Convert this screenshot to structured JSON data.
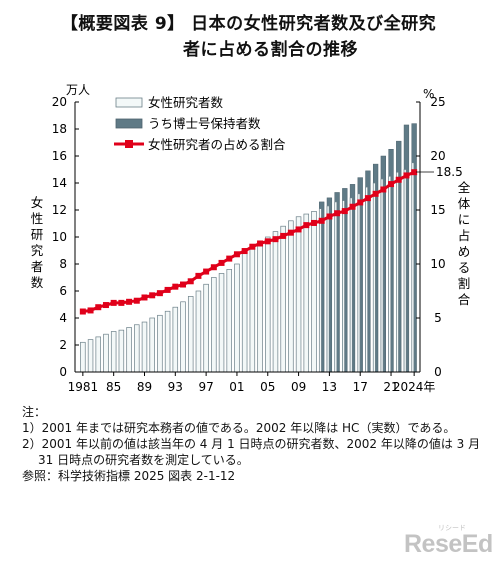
{
  "header": {
    "title_line1": "【概要図表 9】 日本の女性研究者数及び全研究",
    "title_line2": "者に占める割合の推移"
  },
  "chart_data": {
    "type": "bar",
    "x_start_year": 1981,
    "x_tick_labels": [
      "1981",
      "85",
      "89",
      "93",
      "97",
      "01",
      "05",
      "09",
      "13",
      "17",
      "21",
      "2024年"
    ],
    "left_axis": {
      "unit": "万人",
      "label": "女性研究者数",
      "ylim": [
        0,
        20
      ],
      "ticks": [
        "0",
        "2",
        "4",
        "6",
        "8",
        "10",
        "12",
        "14",
        "16",
        "18",
        "20"
      ]
    },
    "right_axis": {
      "unit": "%",
      "label": "全体に占める割合",
      "ylim": [
        0,
        25
      ],
      "ticks": [
        "0",
        "5",
        "10",
        "15",
        "20",
        "25"
      ]
    },
    "legend": [
      "女性研究者数",
      "うち博士号保持者数",
      "女性研究者の占める割合"
    ],
    "legend_placement": "top-left",
    "annotation": "18.5",
    "series": [
      {
        "name": "女性研究者数",
        "type": "bar",
        "values": [
          2.2,
          2.4,
          2.6,
          2.8,
          3.0,
          3.1,
          3.3,
          3.5,
          3.7,
          4.0,
          4.2,
          4.5,
          4.8,
          5.2,
          5.6,
          6.0,
          6.5,
          7.0,
          7.3,
          7.6,
          8.0,
          8.8,
          9.2,
          9.6,
          10.0,
          10.4,
          10.8,
          11.2,
          11.5,
          11.7,
          11.9,
          12.1,
          12.3,
          12.6,
          12.7,
          12.9,
          13.2,
          13.7,
          14.0,
          14.3,
          14.5,
          14.8,
          15.0,
          15.5
        ]
      },
      {
        "name": "うち博士号保持者数",
        "type": "bar",
        "values": [
          null,
          null,
          null,
          null,
          null,
          null,
          null,
          null,
          null,
          null,
          null,
          null,
          null,
          null,
          null,
          null,
          null,
          null,
          null,
          null,
          null,
          null,
          null,
          null,
          null,
          null,
          null,
          null,
          null,
          null,
          null,
          12.6,
          12.9,
          13.3,
          13.6,
          13.9,
          14.4,
          14.9,
          15.4,
          16.0,
          16.5,
          17.1,
          18.3,
          18.4
        ]
      },
      {
        "name": "女性研究者の占める割合",
        "type": "line",
        "values": [
          5.6,
          5.7,
          6.0,
          6.2,
          6.4,
          6.4,
          6.5,
          6.6,
          6.9,
          7.1,
          7.3,
          7.6,
          7.9,
          8.1,
          8.4,
          8.9,
          9.3,
          9.7,
          10.1,
          10.5,
          10.9,
          11.2,
          11.6,
          11.9,
          12.1,
          12.3,
          12.6,
          12.9,
          13.2,
          13.6,
          13.8,
          14.0,
          14.4,
          14.7,
          14.9,
          15.3,
          15.7,
          16.1,
          16.5,
          16.9,
          17.4,
          17.8,
          18.2,
          18.5
        ]
      }
    ]
  },
  "notes": {
    "heading": "注：",
    "note1": "1）2001 年までは研究本務者の値である。2002 年以降は HC（実数）である。",
    "note2": "2）2001 年以前の値は該当年の 4 月 1 日時点の研究者数、2002 年以降の値は 3 月 31 日時点の研究者数を測定している。",
    "source": "参照：科学技術指標 2025 図表 2-1-12"
  },
  "logo": {
    "text": "ReseEd",
    "ruby": "リシード"
  },
  "colors": {
    "bar_fill": "#f3f8f8",
    "bar_stroke": "#6b7f88",
    "doctor_fill": "#5f7a86",
    "line": "#e0001a",
    "axis": "#000000"
  }
}
